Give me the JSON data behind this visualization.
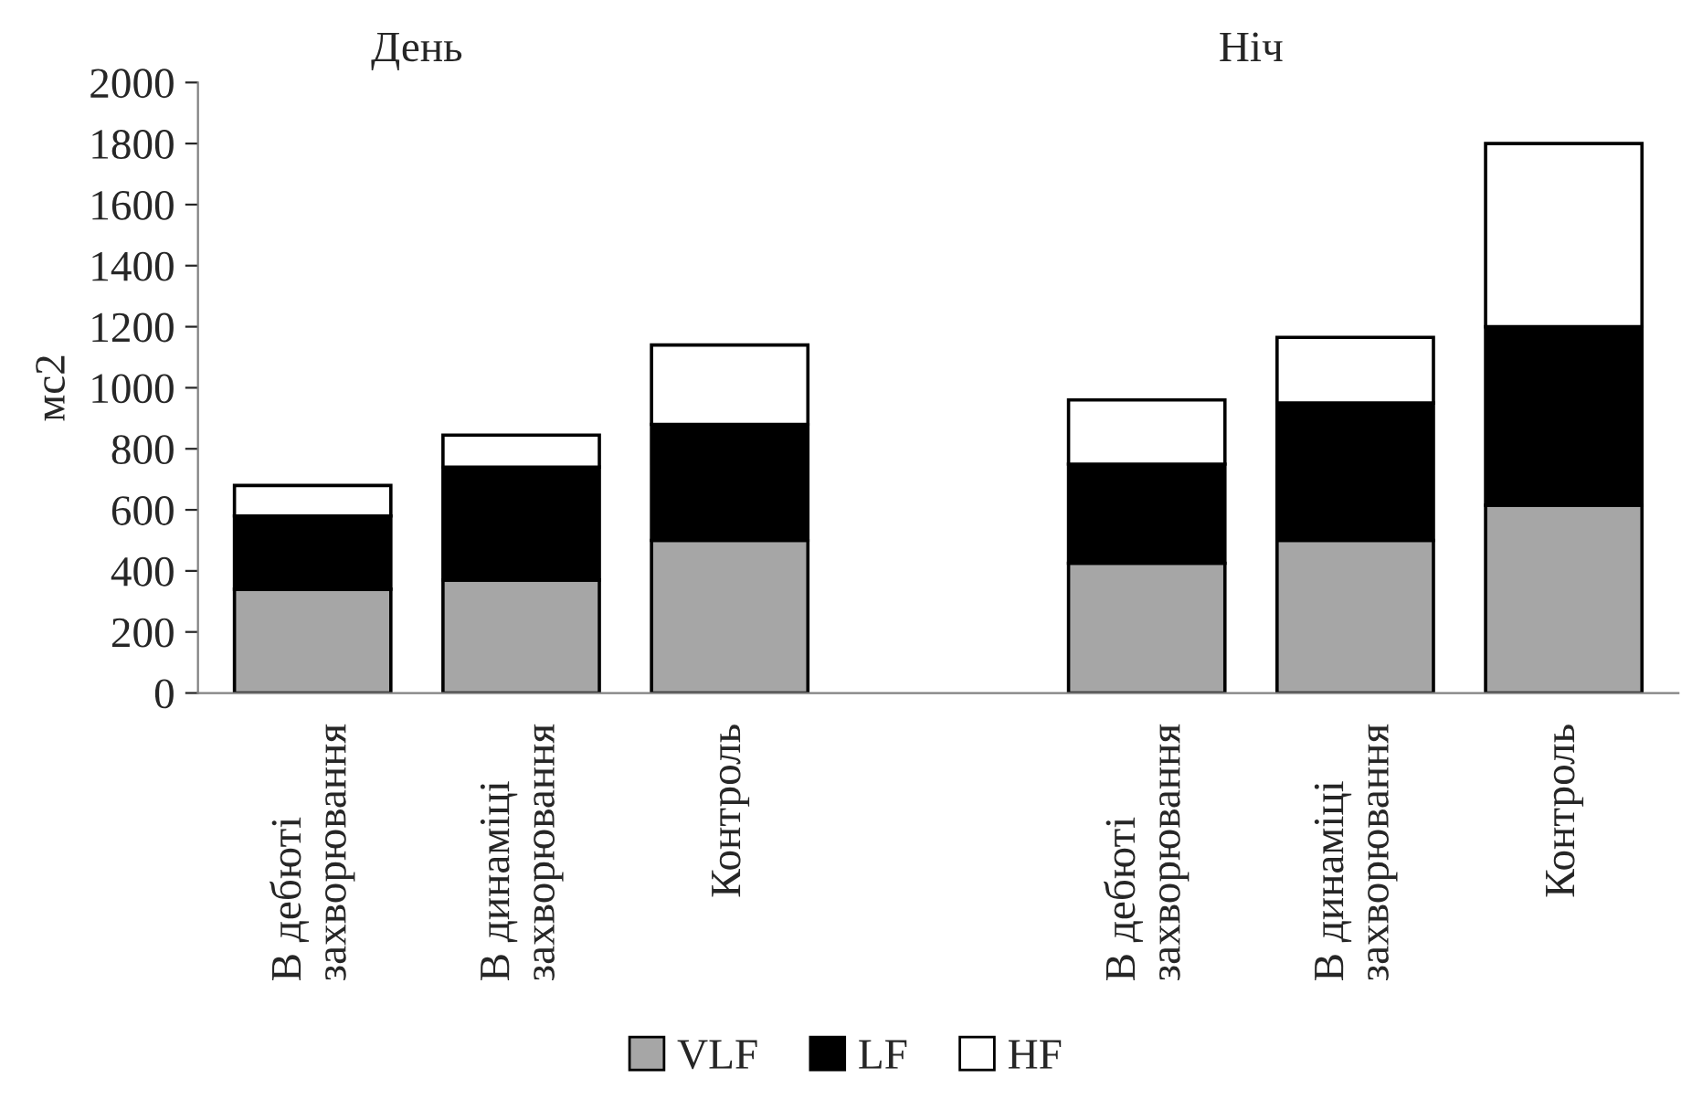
{
  "chart_data": {
    "type": "bar",
    "stacked": true,
    "ylabel": "мс2",
    "annotations": [
      "День",
      "Ніч"
    ],
    "categories": [
      "В дебюті\nзахворювання",
      "В динаміці\nзахворювання",
      "Контроль",
      null,
      "В дебюті\nзахворювання",
      "В динаміці\nзахворювання",
      "Контроль"
    ],
    "series": [
      {
        "name": "VLF",
        "color": "#a6a6a6",
        "values": [
          340,
          370,
          500,
          null,
          425,
          500,
          615
        ]
      },
      {
        "name": "LF",
        "color": "#000000",
        "values": [
          240,
          370,
          380,
          null,
          325,
          450,
          585
        ]
      },
      {
        "name": "HF",
        "color": "#ffffff",
        "values": [
          100,
          105,
          260,
          null,
          210,
          215,
          600
        ]
      }
    ],
    "ylim": [
      0,
      2000
    ],
    "yticks": [
      0,
      200,
      400,
      600,
      800,
      1000,
      1200,
      1400,
      1600,
      1800,
      2000
    ],
    "grid": false,
    "legend": "bottom"
  }
}
